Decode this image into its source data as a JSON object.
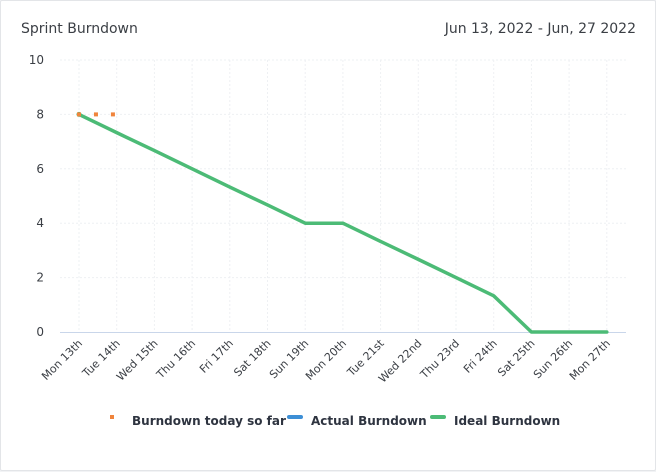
{
  "header": {
    "title": "Sprint Burndown",
    "date_range": "Jun 13, 2022 - Jun, 27 2022"
  },
  "colors": {
    "today": "#f0843c",
    "actual": "#3d8fd6",
    "ideal": "#4cbb76",
    "grid": "#eef0f3",
    "axis": "#c9d6ea"
  },
  "chart_data": {
    "type": "line",
    "categories": [
      "Mon 13th",
      "Tue 14th",
      "Wed 15th",
      "Thu 16th",
      "Fri 17th",
      "Sat 18th",
      "Sun 19th",
      "Mon 20th",
      "Tue 21st",
      "Wed 22nd",
      "Thu 23rd",
      "Fri 24th",
      "Sat 25th",
      "Sun 26th",
      "Mon 27th"
    ],
    "ylim": [
      0,
      10
    ],
    "yticks": [
      0,
      2,
      4,
      6,
      8,
      10
    ],
    "grid": true,
    "legend_position": "bottom",
    "series": [
      {
        "name": "Burndown today so far",
        "kind": "points",
        "values": [
          8,
          8,
          8,
          null,
          null,
          null,
          null,
          null,
          null,
          null,
          null,
          null,
          null,
          null,
          null
        ]
      },
      {
        "name": "Actual Burndown",
        "kind": "line",
        "values": [
          8,
          null,
          null,
          null,
          null,
          null,
          null,
          null,
          null,
          null,
          null,
          null,
          null,
          null,
          null
        ]
      },
      {
        "name": "Ideal Burndown",
        "kind": "line",
        "values": [
          8,
          7.33,
          6.67,
          6,
          5.33,
          4.67,
          4,
          4,
          3.33,
          2.67,
          2,
          1.33,
          0,
          0,
          0
        ]
      }
    ]
  }
}
